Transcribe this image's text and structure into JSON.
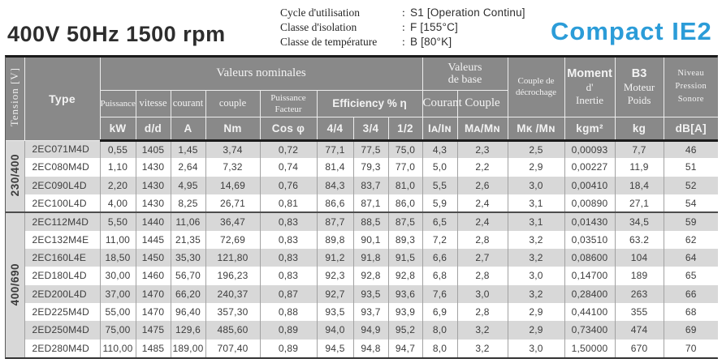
{
  "header": {
    "title": "400V 50Hz 1500 rpm",
    "logo": "Compact IE2",
    "logo_color": "#2b9cd8",
    "info": [
      {
        "label": "Cycle d'utilisation",
        "sep": ":",
        "value": "S1 [Operation Continu]"
      },
      {
        "label": "Classe d'isolation",
        "sep": ":",
        "value": "F [155°C]"
      },
      {
        "label": "Classe de température",
        "sep": ":",
        "value": "B [80°K]"
      }
    ]
  },
  "table": {
    "header_bg": "#898989",
    "tension_label": "Tension [V]",
    "type_label": "Type",
    "group_headers": {
      "valeurs_nominales": "Valeurs nominales",
      "valeurs_base_1": "Valeurs",
      "valeurs_base_2": "de base",
      "decrochage_1": "Couple de",
      "decrochage_2": "décrochage",
      "moment_1": "Moment",
      "moment_2": "d'",
      "moment_3": "Inertie",
      "b3_1": "B3",
      "b3_2": "Moteur",
      "b3_3": "Poids",
      "niveau_1": "Niveau",
      "niveau_2": "Pression",
      "niveau_3": "Sonore",
      "efficiency": "Efficiency % η",
      "courant": "Courant",
      "couple": "Couple"
    },
    "sub_headers": {
      "puissance": "Puissance",
      "vitesse": "vitesse",
      "courant": "courant",
      "couple": "couple",
      "pf_1": "Puissance",
      "pf_2": "Facteur"
    },
    "units": [
      "kW",
      "d/d",
      "A",
      "Nm",
      "Cos φ",
      "4/4",
      "3/4",
      "1/2",
      "Iᴀ/Iɴ",
      "Mᴀ/Mɴ",
      "Mᴋ /Mɴ",
      "kgm²",
      "kg",
      "dB[A]"
    ],
    "groups": [
      {
        "tension": "230/400",
        "rows": [
          {
            "type": "2EC071M4D",
            "values": [
              "0,55",
              "1405",
              "1,45",
              "3,74",
              "0,72",
              "77,1",
              "77,5",
              "75,0",
              "4,3",
              "2,3",
              "2,5",
              "0,00093",
              "7,7",
              "46"
            ]
          },
          {
            "type": "2EC080M4D",
            "values": [
              "1,10",
              "1430",
              "2,64",
              "7,32",
              "0,74",
              "81,4",
              "79,3",
              "77,0",
              "5,0",
              "2,2",
              "2,9",
              "0,00227",
              "11,9",
              "51"
            ]
          },
          {
            "type": "2EC090L4D",
            "values": [
              "2,20",
              "1430",
              "4,95",
              "14,69",
              "0,76",
              "84,3",
              "83,7",
              "81,0",
              "5,5",
              "2,6",
              "3,0",
              "0,00410",
              "18,4",
              "52"
            ]
          },
          {
            "type": "2EC100L4D",
            "values": [
              "4,00",
              "1430",
              "8,25",
              "26,71",
              "0,81",
              "86,6",
              "87,1",
              "86,0",
              "5,9",
              "2,4",
              "3,1",
              "0,00890",
              "27,1",
              "54"
            ]
          }
        ]
      },
      {
        "tension": "400/690",
        "rows": [
          {
            "type": "2EC112M4D",
            "values": [
              "5,50",
              "1440",
              "11,06",
              "36,47",
              "0,83",
              "87,7",
              "88,5",
              "87,5",
              "6,5",
              "2,4",
              "3,1",
              "0,01430",
              "34,5",
              "59"
            ]
          },
          {
            "type": "2EC132M4E",
            "values": [
              "11,00",
              "1445",
              "21,35",
              "72,69",
              "0,83",
              "89,8",
              "90,1",
              "89,3",
              "7,2",
              "2,8",
              "3,2",
              "0,03510",
              "63.2",
              "62"
            ]
          },
          {
            "type": "2EC160L4E",
            "values": [
              "18,50",
              "1450",
              "35,30",
              "121,80",
              "0,83",
              "91,2",
              "91,8",
              "91,5",
              "6,6",
              "2,7",
              "3,2",
              "0,08600",
              "104",
              "64"
            ]
          },
          {
            "type": "2ED180L4D",
            "values": [
              "30,00",
              "1460",
              "56,70",
              "196,23",
              "0,83",
              "92,3",
              "92,8",
              "92,8",
              "6,8",
              "2,8",
              "3,0",
              "0,14700",
              "189",
              "65"
            ]
          },
          {
            "type": "2ED200L4D",
            "values": [
              "37,00",
              "1470",
              "66,20",
              "240,37",
              "0,87",
              "92,7",
              "93,5",
              "93,6",
              "7,6",
              "3,0",
              "3,2",
              "0,28400",
              "263",
              "66"
            ]
          },
          {
            "type": "2ED225M4D",
            "values": [
              "55,00",
              "1470",
              "96,40",
              "357,30",
              "0,88",
              "93,5",
              "93,7",
              "93,9",
              "6,9",
              "2,8",
              "2,9",
              "0,44100",
              "355",
              "68"
            ]
          },
          {
            "type": "2ED250M4D",
            "values": [
              "75,00",
              "1475",
              "129,6",
              "485,60",
              "0,89",
              "94,0",
              "94,9",
              "95,2",
              "8,0",
              "3,2",
              "2,9",
              "0,73400",
              "474",
              "69"
            ]
          },
          {
            "type": "2ED280M4D",
            "values": [
              "110,00",
              "1485",
              "189,00",
              "707,40",
              "0,89",
              "94,5",
              "94,8",
              "94,7",
              "8,0",
              "3,2",
              "3,0",
              "1,50000",
              "670",
              "70"
            ]
          }
        ]
      }
    ]
  }
}
